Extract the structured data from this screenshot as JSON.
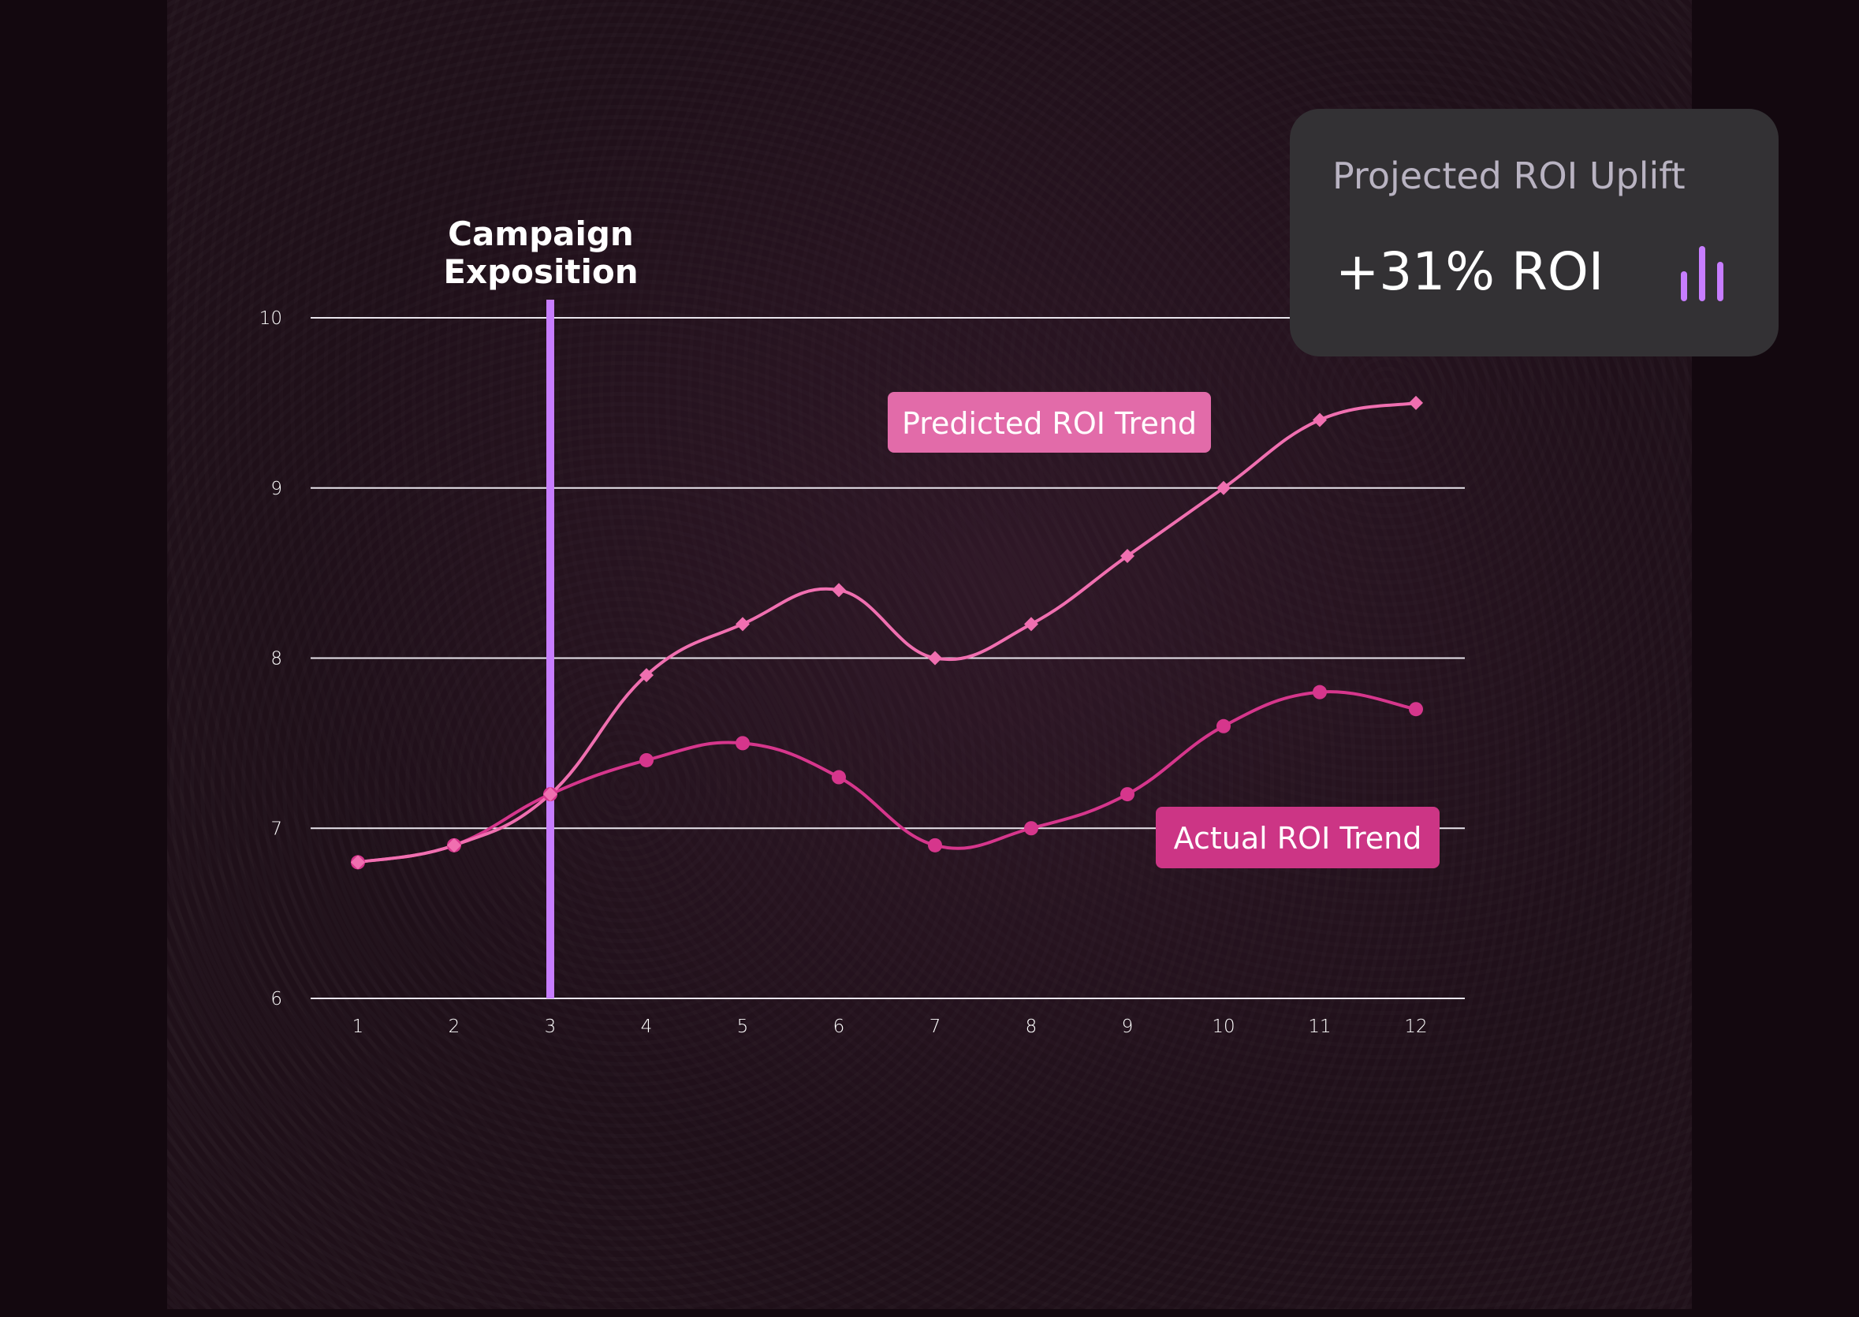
{
  "annotation": {
    "line1": "Campaign",
    "line2": "Exposition",
    "x": 3
  },
  "kpi": {
    "title": "Projected ROI Uplift",
    "value": "+31% ROI",
    "icon": "bar-chart-icon",
    "icon_color": "#c77dff"
  },
  "chart_data": {
    "type": "line",
    "x": [
      1,
      2,
      3,
      4,
      5,
      6,
      7,
      8,
      9,
      10,
      11,
      12
    ],
    "xlim": [
      0.5,
      12.5
    ],
    "ylim": [
      6,
      10
    ],
    "yticks": [
      6,
      7,
      8,
      9,
      10
    ],
    "grid": true,
    "series": [
      {
        "name": "Predicted ROI Trend",
        "values": [
          6.8,
          6.9,
          7.2,
          7.9,
          8.2,
          8.4,
          8.0,
          8.2,
          8.6,
          9.0,
          9.4,
          9.5
        ],
        "color": "#f06fb0",
        "marker": "diamond"
      },
      {
        "name": "Actual ROI Trend",
        "values": [
          6.8,
          6.9,
          7.2,
          7.4,
          7.5,
          7.3,
          6.9,
          7.0,
          7.2,
          7.6,
          7.8,
          7.7
        ],
        "color": "#d6368c",
        "marker": "circle"
      }
    ],
    "colors": {
      "marker_line": "#c77dff",
      "grid": "#e8e4ec",
      "predicted_label_bg": "#e26ba9",
      "actual_label_bg": "#cc3585"
    }
  }
}
